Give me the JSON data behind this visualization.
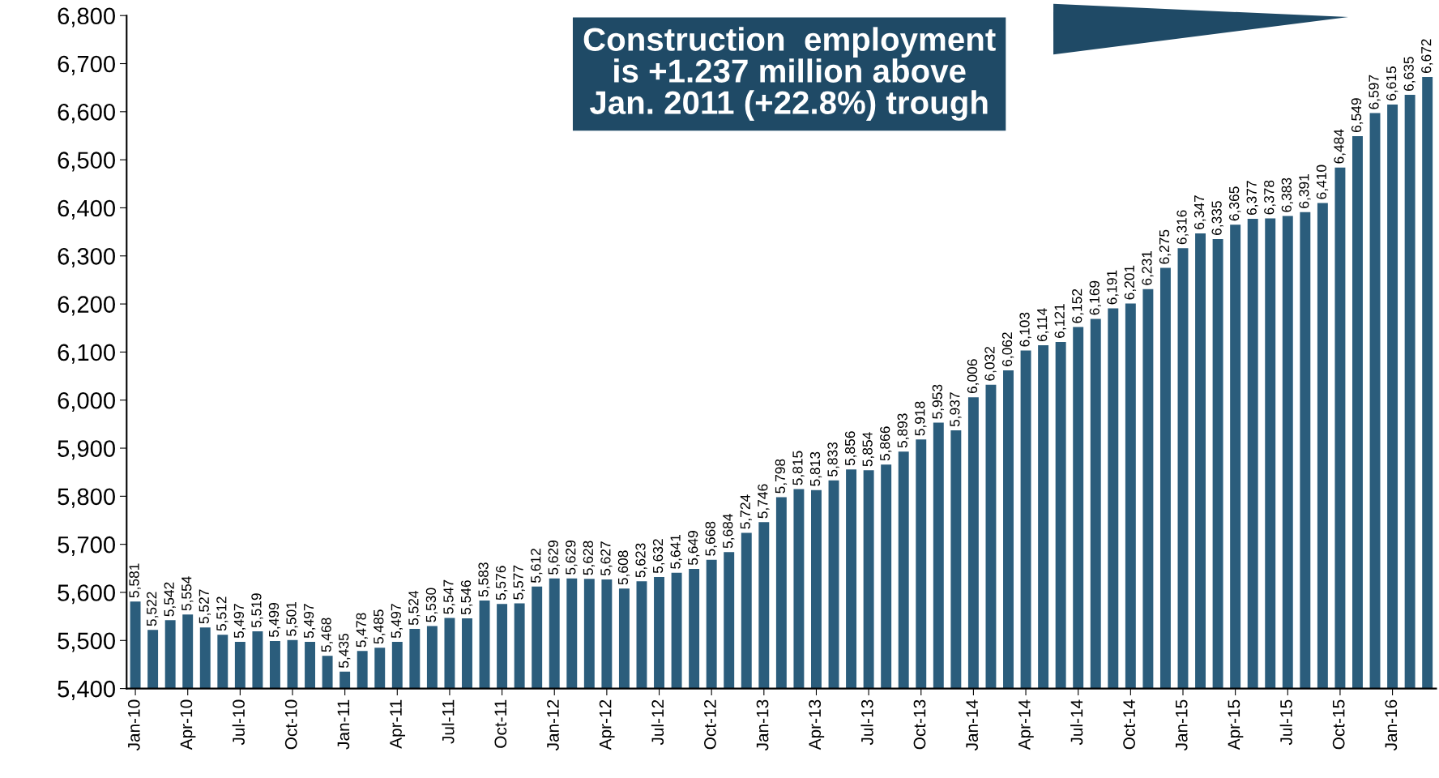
{
  "chart_data": {
    "type": "bar",
    "categories": [
      "Jan-10",
      null,
      null,
      "Apr-10",
      null,
      null,
      "Jul-10",
      null,
      null,
      "Oct-10",
      null,
      null,
      "Jan-11",
      null,
      null,
      "Apr-11",
      null,
      null,
      "Jul-11",
      null,
      null,
      "Oct-11",
      null,
      null,
      "Jan-12",
      null,
      null,
      "Apr-12",
      null,
      null,
      "Jul-12",
      null,
      null,
      "Oct-12",
      null,
      null,
      "Jan-13",
      null,
      null,
      "Apr-13",
      null,
      null,
      "Jul-13",
      null,
      null,
      "Oct-13",
      null,
      null,
      "Jan-14",
      null,
      null,
      "Apr-14",
      null,
      null,
      "Jul-14",
      null,
      null,
      "Oct-14",
      null,
      null,
      "Jan-15",
      null,
      null,
      "Apr-15",
      null,
      null,
      "Jul-15",
      null,
      null,
      "Oct-15",
      null,
      null,
      "Jan-16",
      null,
      null
    ],
    "values": [
      5581,
      5522,
      5542,
      5554,
      5527,
      5512,
      5497,
      5519,
      5499,
      5501,
      5497,
      5468,
      5435,
      5478,
      5485,
      5497,
      5524,
      5530,
      5547,
      5546,
      5583,
      5576,
      5577,
      5612,
      5629,
      5629,
      5628,
      5627,
      5608,
      5623,
      5632,
      5641,
      5649,
      5668,
      5684,
      5724,
      5746,
      5798,
      5815,
      5813,
      5833,
      5856,
      5854,
      5866,
      5893,
      5918,
      5953,
      5937,
      6006,
      6032,
      6062,
      6103,
      6114,
      6121,
      6152,
      6169,
      6191,
      6201,
      6231,
      6275,
      6316,
      6347,
      6335,
      6365,
      6377,
      6378,
      6383,
      6391,
      6410,
      6484,
      6549,
      6597,
      6615,
      6635,
      6672
    ],
    "value_labels": [
      "5,581",
      "5,522",
      "5,542",
      "5,554",
      "5,527",
      "5,512",
      "5,497",
      "5,519",
      "5,499",
      "5,501",
      "5,497",
      "5,468",
      "5,435",
      "5,478",
      "5,485",
      "5,497",
      "5,524",
      "5,530",
      "5,547",
      "5,546",
      "5,583",
      "5,576",
      "5,577",
      "5,612",
      "5,629",
      "5,629",
      "5,628",
      "5,627",
      "5,608",
      "5,623",
      "5,632",
      "5,641",
      "5,649",
      "5,668",
      "5,684",
      "5,724",
      "5,746",
      "5,798",
      "5,815",
      "5,813",
      "5,833",
      "5,856",
      "5,854",
      "5,866",
      "5,893",
      "5,918",
      "5,953",
      "5,937",
      "6,006",
      "6,032",
      "6,062",
      "6,103",
      "6,114",
      "6,121",
      "6,152",
      "6,169",
      "6,191",
      "6,201",
      "6,231",
      "6,275",
      "6,316",
      "6,347",
      "6,335",
      "6,365",
      "6,377",
      "6,378",
      "6,383",
      "6,391",
      "6,410",
      "6,484",
      "6,549",
      "6,597",
      "6,615",
      "6,635",
      "6,672"
    ],
    "color": "#2b5d7c",
    "ylim": [
      5400,
      6800
    ],
    "yticks": [
      {
        "value": 5400,
        "label": "5,400"
      },
      {
        "value": 5500,
        "label": "5,500"
      },
      {
        "value": 5600,
        "label": "5,600"
      },
      {
        "value": 5700,
        "label": "5,700"
      },
      {
        "value": 5800,
        "label": "5,800"
      },
      {
        "value": 5900,
        "label": "5,900"
      },
      {
        "value": 6000,
        "label": "6,000"
      },
      {
        "value": 6100,
        "label": "6,100"
      },
      {
        "value": 6200,
        "label": "6,200"
      },
      {
        "value": 6300,
        "label": "6,300"
      },
      {
        "value": 6400,
        "label": "6,400"
      },
      {
        "value": 6500,
        "label": "6,500"
      },
      {
        "value": 6600,
        "label": "6,600"
      },
      {
        "value": 6700,
        "label": "6,700"
      },
      {
        "value": 6800,
        "label": "6,800"
      }
    ],
    "annotations": [
      "Construction  employment\nis +1.237 million above\nJan. 2011 (+22.8%) trough"
    ],
    "grid": false,
    "legend": false
  }
}
